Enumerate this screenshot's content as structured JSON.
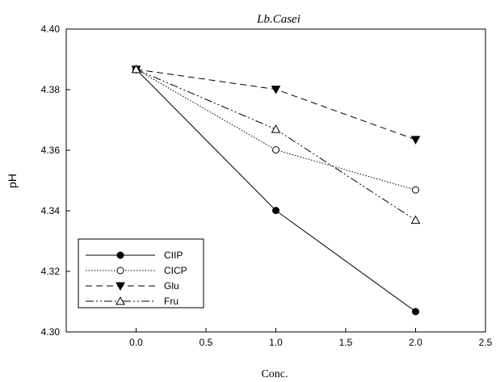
{
  "chart_data": {
    "type": "line",
    "title": "Lb.Casei",
    "xlabel": "Conc.",
    "ylabel": "pH",
    "xlim": [
      -0.5,
      2.5
    ],
    "ylim": [
      4.3,
      4.4
    ],
    "x_ticks": [
      "0.0",
      "0.5",
      "1.0",
      "1.5",
      "2.0",
      "2.5"
    ],
    "y_ticks": [
      "4.30",
      "4.32",
      "4.34",
      "4.36",
      "4.38",
      "4.40"
    ],
    "x": [
      0.0,
      1.0,
      2.0
    ],
    "series": [
      {
        "name": "CIIP",
        "values": [
          4.3867,
          4.3401,
          4.3067
        ],
        "line_style": "solid",
        "marker": "filled-circle"
      },
      {
        "name": "CICP",
        "values": [
          4.3867,
          4.3601,
          4.3469
        ],
        "line_style": "dotted",
        "marker": "open-circle"
      },
      {
        "name": "Glu",
        "values": [
          4.3867,
          4.3801,
          4.3635
        ],
        "line_style": "dashed",
        "marker": "filled-triangle-down"
      },
      {
        "name": "Fru",
        "values": [
          4.3867,
          4.3669,
          4.3369
        ],
        "line_style": "dash-dot-dot",
        "marker": "open-triangle-up"
      }
    ],
    "legend_position": "bottom-left",
    "grid": false
  }
}
